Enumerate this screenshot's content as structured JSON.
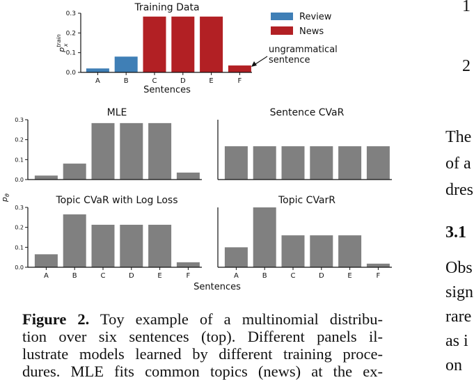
{
  "chart_data": [
    {
      "id": "training",
      "type": "bar",
      "title": "Training Data",
      "xlabel": "Sentences",
      "ylabel": "p_x^{train}",
      "ylim": [
        0,
        0.3
      ],
      "yticks": [
        "0.0",
        "0.1",
        "0.2",
        "0.3"
      ],
      "categories": [
        "A",
        "B",
        "C",
        "D",
        "E",
        "F"
      ],
      "values": [
        0.02,
        0.08,
        0.283,
        0.283,
        0.283,
        0.035
      ],
      "bar_groups": [
        "Review",
        "Review",
        "News",
        "News",
        "News",
        "News"
      ],
      "legend": [
        {
          "name": "Review",
          "color": "#3f7fb6"
        },
        {
          "name": "News",
          "color": "#b22024"
        }
      ],
      "legend_position": "right",
      "annotation": {
        "line1": "ungrammatical",
        "line2": "sentence",
        "target": "F"
      }
    },
    {
      "id": "mle",
      "type": "bar",
      "title": "MLE",
      "ylim": [
        0,
        0.3
      ],
      "yticks": [
        "0.0",
        "0.1",
        "0.2",
        "0.3"
      ],
      "categories": [
        "A",
        "B",
        "C",
        "D",
        "E",
        "F"
      ],
      "values": [
        0.02,
        0.08,
        0.283,
        0.283,
        0.283,
        0.035
      ],
      "color": "#808080"
    },
    {
      "id": "sentence-cvar",
      "type": "bar",
      "title": "Sentence CVaR",
      "ylim": [
        0,
        0.3
      ],
      "categories": [
        "A",
        "B",
        "C",
        "D",
        "E",
        "F"
      ],
      "values": [
        0.167,
        0.167,
        0.167,
        0.167,
        0.167,
        0.167
      ],
      "color": "#808080"
    },
    {
      "id": "topic-cvar-log",
      "type": "bar",
      "title": "Topic CVaR with Log Loss",
      "ylim": [
        0,
        0.3
      ],
      "yticks": [
        "0.0",
        "0.1",
        "0.2",
        "0.3"
      ],
      "categories": [
        "A",
        "B",
        "C",
        "D",
        "E",
        "F"
      ],
      "values": [
        0.065,
        0.265,
        0.213,
        0.213,
        0.213,
        0.025
      ],
      "color": "#808080"
    },
    {
      "id": "topic-cvarr",
      "type": "bar",
      "title": "Topic CVarR",
      "ylim": [
        0,
        0.3
      ],
      "categories": [
        "A",
        "B",
        "C",
        "D",
        "E",
        "F"
      ],
      "values": [
        0.1,
        0.3,
        0.16,
        0.16,
        0.16,
        0.018
      ],
      "color": "#808080"
    }
  ],
  "shared": {
    "ylabel_lower": "p_θ",
    "xlabel_lower": "Sentences"
  },
  "caption": {
    "label": "Figure 2.",
    "lines": [
      "Toy example of a multinomial distribu-",
      "tion over six sentences (top).  Different panels il-",
      "lustrate models learned by different training proce-",
      "dures.  MLE fits common topics (news) at the ex-"
    ]
  },
  "right_column": {
    "num1": "1",
    "num2": "2",
    "text1": "The",
    "text2": "of a",
    "text3": "dres",
    "heading": "3.1",
    "text4": "Obs",
    "text5": "sign",
    "text6": "rare",
    "text7": "as i",
    "text8": "on"
  }
}
